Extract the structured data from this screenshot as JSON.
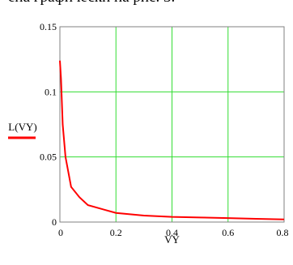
{
  "caption": "ена графически на рис. 3.",
  "chart_data": {
    "type": "line",
    "xlabel": "VY",
    "ylabel": "L(VY)",
    "xlim": [
      0,
      0.8
    ],
    "ylim": [
      0,
      0.15
    ],
    "xticks": [
      "0",
      "0.2",
      "0.4",
      "0.6",
      "0.8"
    ],
    "yticks": [
      "0",
      "0.05",
      "0.1",
      "0.15"
    ],
    "xtick_values": [
      0,
      0.2,
      0.4,
      0.6,
      0.8
    ],
    "ytick_values": [
      0,
      0.05,
      0.1,
      0.15
    ],
    "grid": true,
    "grid_color": "#33dd33",
    "series": [
      {
        "color": "#ff0000",
        "x": [
          0.0,
          0.004,
          0.01,
          0.02,
          0.04,
          0.07,
          0.1,
          0.15,
          0.2,
          0.3,
          0.4,
          0.5,
          0.6,
          0.7,
          0.8
        ],
        "y": [
          0.124,
          0.11,
          0.075,
          0.05,
          0.027,
          0.019,
          0.013,
          0.01,
          0.007,
          0.005,
          0.004,
          0.0035,
          0.003,
          0.0025,
          0.002
        ]
      }
    ]
  }
}
